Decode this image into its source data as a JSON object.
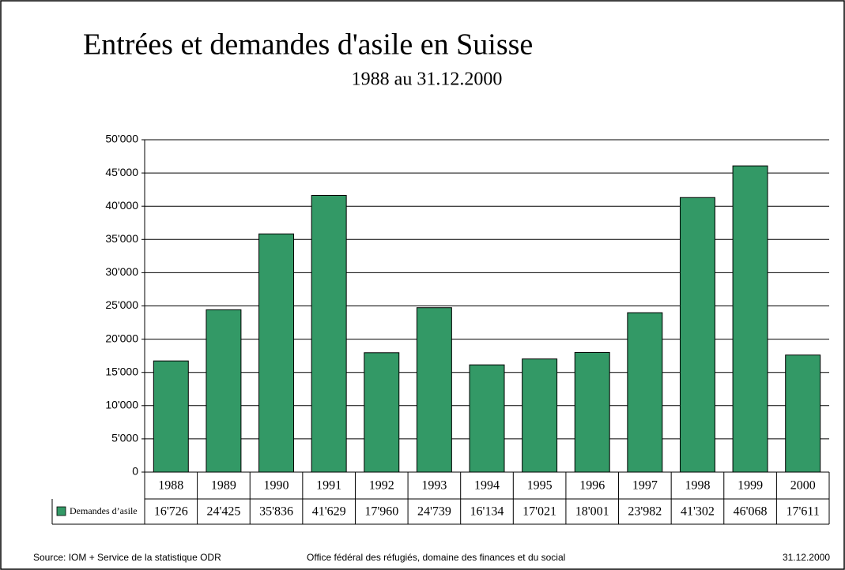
{
  "chart_data": {
    "type": "bar",
    "title": "Entrées et demandes d'asile en Suisse",
    "subtitle": "1988 au 31.12.2000",
    "categories": [
      "1988",
      "1989",
      "1990",
      "1991",
      "1992",
      "1993",
      "1994",
      "1995",
      "1996",
      "1997",
      "1998",
      "1999",
      "2000"
    ],
    "series": [
      {
        "name": "Demandes d’asile",
        "color": "#339966",
        "values": [
          16726,
          24425,
          35836,
          41629,
          17960,
          24739,
          16134,
          17021,
          18001,
          23982,
          41302,
          46068,
          17611
        ],
        "value_labels": [
          "16'726",
          "24'425",
          "35'836",
          "41'629",
          "17'960",
          "24'739",
          "16'134",
          "17'021",
          "18'001",
          "23'982",
          "41'302",
          "46'068",
          "17'611"
        ]
      }
    ],
    "ylim": [
      0,
      50000
    ],
    "yticks": [
      0,
      {
        "value": 5000,
        "label": "5'000"
      },
      {
        "value": 10000,
        "label": "10'000"
      },
      {
        "value": 15000,
        "label": "15'000"
      },
      {
        "value": 20000,
        "label": "20'000"
      },
      {
        "value": 25000,
        "label": "25'000"
      },
      {
        "value": 30000,
        "label": "30'000"
      },
      {
        "value": 35000,
        "label": "35'000"
      },
      {
        "value": 40000,
        "label": "40'000"
      },
      {
        "value": 45000,
        "label": "45'000"
      },
      {
        "value": 50000,
        "label": "50'000"
      }
    ],
    "grid": true
  },
  "footer": {
    "source": "Source: IOM  + Service de la statistique ODR",
    "office": "Office fédéral des réfugiés, domaine des finances et du social",
    "date": "31.12.2000"
  }
}
